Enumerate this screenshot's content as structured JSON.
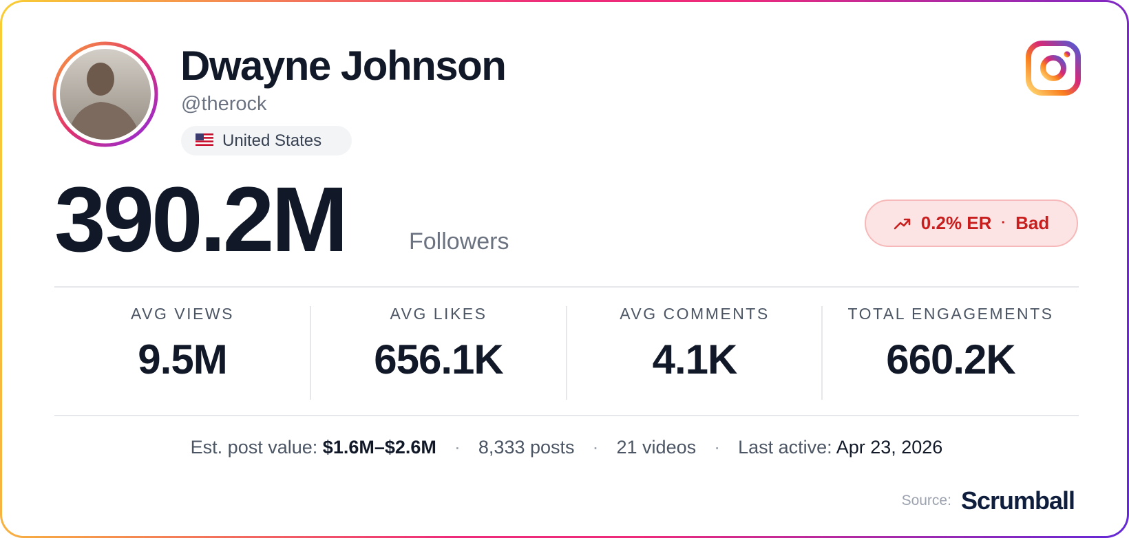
{
  "profile": {
    "name": "Dwayne Johnson",
    "handle": "@therock",
    "country": "United States"
  },
  "followers": {
    "value": "390.2M",
    "label": "Followers"
  },
  "engagement": {
    "rate": "0.2% ER",
    "separator": "·",
    "rating": "Bad"
  },
  "stats": [
    {
      "label": "AVG VIEWS",
      "value": "9.5M"
    },
    {
      "label": "AVG LIKES",
      "value": "656.1K"
    },
    {
      "label": "AVG COMMENTS",
      "value": "4.1K"
    },
    {
      "label": "TOTAL ENGAGEMENTS",
      "value": "660.2K"
    }
  ],
  "footer": {
    "separator": "·",
    "post_value": {
      "label": "Est. post value:",
      "value": "$1.6M–$2.6M"
    },
    "posts": "8,333 posts",
    "videos": "21 videos",
    "last_active": {
      "label": "Last active:",
      "value": "Apr 23, 2026"
    }
  },
  "source": {
    "label": "Source:",
    "brand": "Scrumball"
  }
}
